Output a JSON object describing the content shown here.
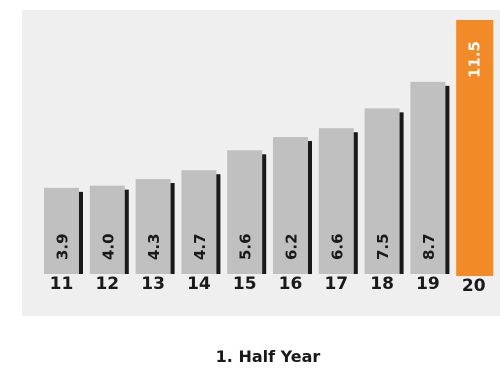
{
  "chart_data": {
    "type": "bar",
    "title": "",
    "xlabel": "1. Half Year",
    "ylabel": "",
    "categories": [
      "11",
      "12",
      "13",
      "14",
      "15",
      "16",
      "17",
      "18",
      "19",
      "20"
    ],
    "values": [
      3.9,
      4.0,
      4.3,
      4.7,
      5.6,
      6.2,
      6.6,
      7.5,
      8.7,
      11.5
    ],
    "value_labels": [
      "3.9",
      "4.0",
      "4.3",
      "4.7",
      "5.6",
      "6.2",
      "6.6",
      "7.5",
      "8.7",
      "11.5"
    ],
    "ylim": [
      0,
      11.5
    ],
    "grid": false,
    "legend": "none",
    "colors": {
      "panel": "#efefef",
      "bar": "#c0c0c1",
      "bar_shadow": "#1a1a1a",
      "highlight": "#f28a28",
      "bar_text": "#1a1a1a",
      "highlight_text": "#ffffff"
    },
    "highlight_index": 9
  }
}
